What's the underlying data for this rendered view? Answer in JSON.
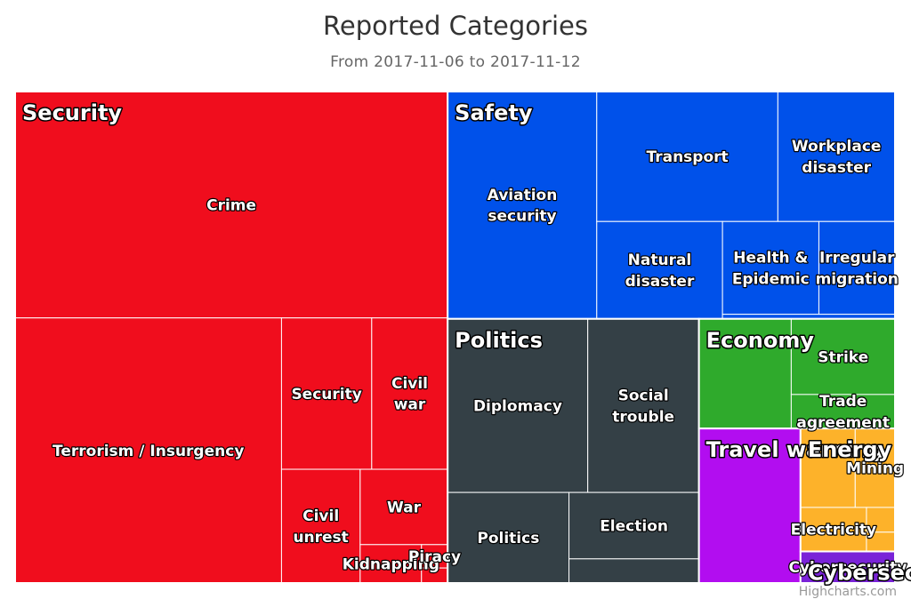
{
  "title": "Reported Categories",
  "subtitle": "From 2017-11-06 to 2017-11-12",
  "credits": "Highcharts.com",
  "chart_data": {
    "type": "treemap",
    "groups": [
      {
        "name": "Security",
        "color": "#f00d1d",
        "children": [
          {
            "name": "Crime",
            "value": 124800
          },
          {
            "name": "Terrorism / Insurgency",
            "value": 90000
          },
          {
            "name": "Security",
            "value": 17400
          },
          {
            "name": "Civil war",
            "value": 14650
          },
          {
            "name": "Civil unrest",
            "value": 11400
          },
          {
            "name": "War",
            "value": 8400
          },
          {
            "name": "Kidnapping",
            "value": 3000
          },
          {
            "name": "Piracy",
            "value": 780
          },
          {
            "name": "",
            "value": 500
          }
        ]
      },
      {
        "name": "Safety",
        "color": "#0051ea",
        "children": [
          {
            "name": "Aviation security",
            "value": 43200
          },
          {
            "name": "Transport",
            "value": 30000
          },
          {
            "name": "Workplace disaster",
            "value": 19400
          },
          {
            "name": "Natural disaster",
            "value": 15600
          },
          {
            "name": "Health & Epidemic",
            "value": 11400
          },
          {
            "name": "Irregular migration",
            "value": 9000
          },
          {
            "name": "",
            "value": 1000
          }
        ]
      },
      {
        "name": "Politics",
        "color": "#344046",
        "children": [
          {
            "name": "Diplomacy",
            "value": 31000
          },
          {
            "name": "Social trouble",
            "value": 24600
          },
          {
            "name": "Politics",
            "value": 14000
          },
          {
            "name": "Election",
            "value": 11000
          },
          {
            "name": "",
            "value": 4000
          }
        ]
      },
      {
        "name": "Economy",
        "color": "#2faa2c",
        "children": [
          {
            "name": "",
            "value": 12900
          },
          {
            "name": "Strike",
            "value": 10000
          },
          {
            "name": "Trade agreement",
            "value": 4500
          }
        ]
      },
      {
        "name": "Travel warning",
        "color": "#b20df0",
        "children": [
          {
            "name": "",
            "value": 20000
          }
        ]
      },
      {
        "name": "Energy",
        "color": "#fdb22a",
        "children": [
          {
            "name": "",
            "value": 5500
          },
          {
            "name": "Mining",
            "value": 4000
          },
          {
            "name": "Electricity",
            "value": 3700
          },
          {
            "name": "",
            "value": 900
          },
          {
            "name": "",
            "value": 700
          }
        ]
      },
      {
        "name": "Cybersecurity",
        "color": "#7a23d8",
        "children": [
          {
            "name": "Cybersecurity",
            "value": 3800
          }
        ]
      }
    ]
  }
}
